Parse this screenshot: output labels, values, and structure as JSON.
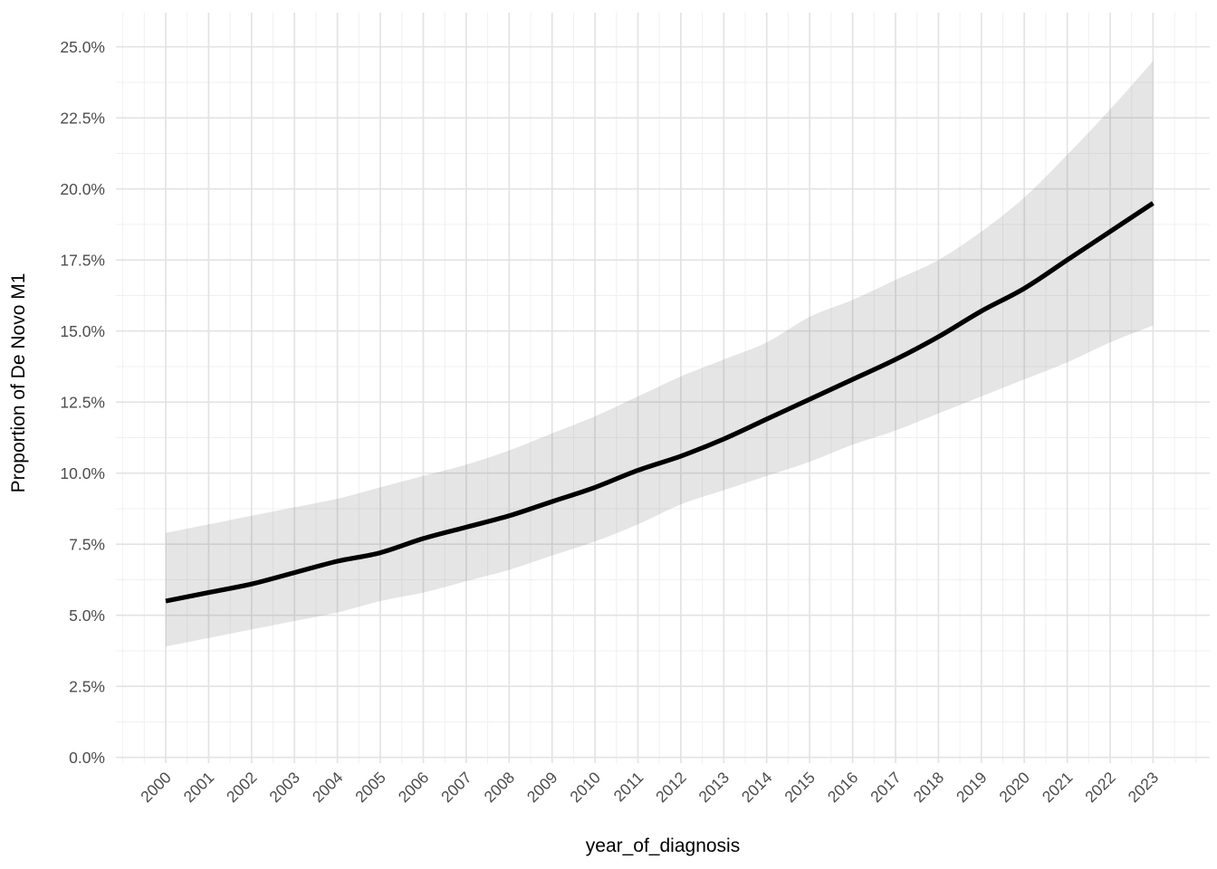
{
  "figure": {
    "background_color": "#FFFFFF",
    "panel_background": "#FFFFFF",
    "theme": "minimal-white-with-light-grid"
  },
  "chart_data": {
    "type": "line",
    "title": "",
    "xlabel": "year_of_diagnosis",
    "ylabel": "Proportion of De Novo M1",
    "x": [
      2000,
      2001,
      2002,
      2003,
      2004,
      2005,
      2006,
      2007,
      2008,
      2009,
      2010,
      2011,
      2012,
      2013,
      2014,
      2015,
      2016,
      2017,
      2018,
      2019,
      2020,
      2021,
      2022,
      2023
    ],
    "series": [
      {
        "name": "fitted_proportion_de_novo_m1_pct",
        "values": [
          5.5,
          5.8,
          6.1,
          6.5,
          6.9,
          7.2,
          7.7,
          8.1,
          8.5,
          9.0,
          9.5,
          10.1,
          10.6,
          11.2,
          11.9,
          12.6,
          13.3,
          14.0,
          14.8,
          15.7,
          16.5,
          17.5,
          18.5,
          19.5
        ]
      }
    ],
    "ribbon": {
      "name": "confidence_interval_pct",
      "lower": [
        3.9,
        4.2,
        4.5,
        4.8,
        5.1,
        5.5,
        5.8,
        6.2,
        6.6,
        7.1,
        7.6,
        8.2,
        8.9,
        9.4,
        9.9,
        10.4,
        11.0,
        11.5,
        12.1,
        12.7,
        13.3,
        13.9,
        14.6,
        15.2
      ],
      "upper": [
        7.9,
        8.2,
        8.5,
        8.8,
        9.1,
        9.5,
        9.9,
        10.3,
        10.8,
        11.4,
        12.0,
        12.7,
        13.4,
        14.0,
        14.6,
        15.5,
        16.1,
        16.8,
        17.5,
        18.5,
        19.7,
        21.2,
        22.8,
        24.5
      ]
    },
    "xlim": [
      1998.85,
      2024.3
    ],
    "ylim": [
      -0.2,
      26.3
    ],
    "xticks": [
      "2000",
      "2001",
      "2002",
      "2003",
      "2004",
      "2005",
      "2006",
      "2007",
      "2008",
      "2009",
      "2010",
      "2011",
      "2012",
      "2013",
      "2014",
      "2015",
      "2016",
      "2017",
      "2018",
      "2019",
      "2020",
      "2021",
      "2022",
      "2023"
    ],
    "ytick_values": [
      0,
      2.5,
      5,
      7.5,
      10,
      12.5,
      15,
      17.5,
      20,
      22.5,
      25
    ],
    "ytick_labels": [
      "0.0%",
      "2.5%",
      "5.0%",
      "7.5%",
      "10.0%",
      "12.5%",
      "15.0%",
      "17.5%",
      "20.0%",
      "22.5%",
      "25.0%"
    ],
    "x_tick_label_rotation_deg": 45,
    "grid": "major-and-minor",
    "legend": "none",
    "colors": {
      "line": "#000000",
      "ribbon_fill": "rgba(115,115,115,0.19)",
      "grid_major": "#E3E3E3",
      "grid_minor": "#F0F0F0",
      "tick_label": "#4D4D4D",
      "axis_title": "#000000"
    }
  }
}
